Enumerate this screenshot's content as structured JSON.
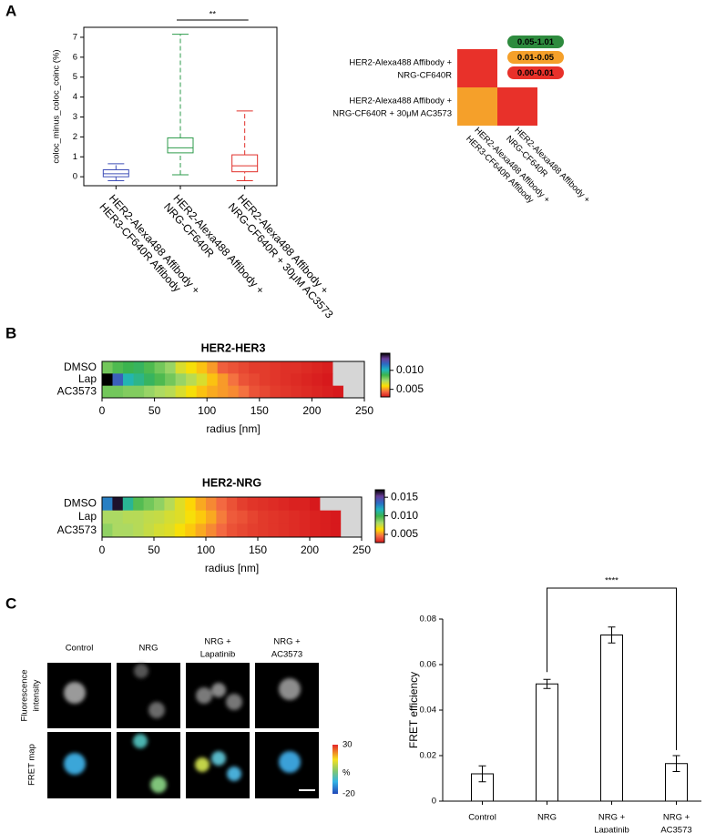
{
  "panel_labels": [
    "A",
    "B",
    "C"
  ],
  "chart_data": [
    {
      "type": "box",
      "ylabel": "coloc_minus_coloc_coinc (%)",
      "categories": [
        [
          "HER2-Alexa488 Affibody +",
          "HER3-CF640R Affibody"
        ],
        [
          "HER2-Alexa488 Affibody +",
          "NRG-CF640R"
        ],
        [
          "HER2-Alexa488 Affibody +",
          "NRG-CF640R + 30μM AC3573"
        ]
      ],
      "colors": [
        "#3f4fb8",
        "#2e9b4b",
        "#e0302a"
      ],
      "boxes": [
        {
          "min": -0.2,
          "q1": 0.0,
          "median": 0.15,
          "q3": 0.35,
          "max": 0.65
        },
        {
          "min": 0.1,
          "q1": 1.2,
          "median": 1.45,
          "q3": 1.95,
          "max": 7.15
        },
        {
          "min": -0.2,
          "q1": 0.25,
          "median": 0.55,
          "q3": 1.1,
          "max": 3.3
        }
      ],
      "ylim": [
        -0.45,
        7.5
      ],
      "yticks": [
        0,
        1,
        2,
        3,
        4,
        5,
        6,
        7
      ],
      "annotations": [
        "**"
      ]
    },
    {
      "type": "pmatrix",
      "rows": [
        [
          "HER2-Alexa488 Affibody +",
          "NRG-CF640R"
        ],
        [
          "HER2-Alexa488 Affibody +",
          "NRG-CF640R + 30μM AC3573"
        ]
      ],
      "columns": [
        [
          "HER2-Alexa488 Affibody +",
          "HER3-CF640R Affibody"
        ],
        [
          "HER2-Alexa488 Affibody +",
          "NRG-CF640R"
        ]
      ],
      "cells": [
        [
          "#e8312a",
          null
        ],
        [
          "#f5a02a",
          "#e8312a"
        ]
      ],
      "legend": [
        {
          "label": "0.05-1.01",
          "color": "#2e8b3e"
        },
        {
          "label": "0.01-0.05",
          "color": "#f5a02a"
        },
        {
          "label": "0.00-0.01",
          "color": "#e8312a"
        }
      ]
    },
    {
      "type": "heatmap",
      "title": "HER2-HER3",
      "y_categories": [
        "DMSO",
        "Lap",
        "AC3573"
      ],
      "values": [
        [
          0.008,
          0.0085,
          0.0088,
          0.009,
          0.0085,
          0.008,
          0.0075,
          0.0065,
          0.006,
          0.0055,
          0.005,
          0.0042,
          0.004,
          0.0038,
          0.0036,
          0.0036,
          0.0035,
          0.0034,
          0.0034,
          0.0033,
          0.0032,
          0.0031,
          0.0029,
          0.0028,
          0.0027
        ],
        [
          0.0145,
          0.012,
          0.01,
          0.0095,
          0.009,
          0.0085,
          0.008,
          0.0075,
          0.007,
          0.0065,
          0.0055,
          0.005,
          0.0045,
          0.004,
          0.0038,
          0.0036,
          0.0035,
          0.0034,
          0.0033,
          0.0032,
          0.0031,
          0.003,
          0.0029,
          0.0028,
          0.0027
        ],
        [
          0.008,
          0.008,
          0.0078,
          0.0078,
          0.0075,
          0.0072,
          0.007,
          0.0065,
          0.006,
          0.0055,
          0.0052,
          0.005,
          0.0048,
          0.0045,
          0.004,
          0.0038,
          0.0036,
          0.0035,
          0.0034,
          0.0033,
          0.0032,
          0.0031,
          0.003,
          0.0029,
          0.0028
        ]
      ],
      "xlim": [
        0,
        250
      ],
      "xticks": [
        0,
        50,
        100,
        150,
        200,
        250
      ],
      "xlabel": "radius [nm]",
      "clim": [
        0.003,
        0.0145
      ],
      "cticks": [
        0.005,
        {
          "value": 0.01,
          "label": "0.010"
        }
      ],
      "colormap": [
        "#d7191c",
        "#f46d43",
        "#fee000",
        "#a6d96a",
        "#3cb44b",
        "#1fb5c0",
        "#2b6cc4",
        "#6a3d9a",
        "#000000"
      ],
      "under_color": "#d6d6d6"
    },
    {
      "type": "heatmap",
      "title": "HER2-NRG",
      "y_categories": [
        "DMSO",
        "Lap",
        "AC3573"
      ],
      "values": [
        [
          0.013,
          0.0165,
          0.011,
          0.0095,
          0.009,
          0.0085,
          0.0078,
          0.007,
          0.0062,
          0.0055,
          0.005,
          0.0045,
          0.004,
          0.0036,
          0.0034,
          0.0033,
          0.0032,
          0.0031,
          0.003,
          0.003,
          0.0028,
          0.0027,
          0.0026,
          0.0025,
          0.0024
        ],
        [
          0.008,
          0.008,
          0.0078,
          0.0078,
          0.0076,
          0.0075,
          0.0072,
          0.007,
          0.0065,
          0.006,
          0.0055,
          0.0048,
          0.0042,
          0.004,
          0.0037,
          0.0035,
          0.0034,
          0.0033,
          0.0032,
          0.0031,
          0.003,
          0.0029,
          0.0028,
          0.0027,
          0.0026
        ],
        [
          0.0085,
          0.008,
          0.008,
          0.0078,
          0.0075,
          0.0072,
          0.007,
          0.0065,
          0.006,
          0.0055,
          0.005,
          0.0045,
          0.004,
          0.0038,
          0.0036,
          0.0035,
          0.0034,
          0.0033,
          0.0032,
          0.0031,
          0.003,
          0.0029,
          0.0028,
          0.0027,
          0.0026
        ]
      ],
      "xlim": [
        0,
        250
      ],
      "xticks": [
        0,
        50,
        100,
        150,
        200,
        250
      ],
      "xlabel": "radius [nm]",
      "clim": [
        0.0028,
        0.017
      ],
      "cticks": [
        0.005,
        {
          "value": 0.01,
          "label": "0.010"
        },
        0.015
      ],
      "colormap": [
        "#d7191c",
        "#f46d43",
        "#fee000",
        "#a6d96a",
        "#3cb44b",
        "#1fb5c0",
        "#2b6cc4",
        "#6a3d9a",
        "#000000"
      ],
      "under_color": "#d6d6d6"
    },
    {
      "type": "bar",
      "ylabel": "FRET  efficiency",
      "categories": [
        [
          "Control"
        ],
        [
          "NRG"
        ],
        [
          "NRG +",
          "Lapatinib"
        ],
        [
          "NRG +",
          "AC3573"
        ]
      ],
      "values": [
        0.012,
        0.0515,
        0.073,
        0.0165
      ],
      "errors": [
        0.0035,
        0.002,
        0.0035,
        0.0035
      ],
      "color": "#ffffff",
      "ylim": [
        0,
        0.08
      ],
      "yticks": [
        0,
        0.02,
        0.04,
        0.06,
        0.08
      ],
      "annotations": [
        "****"
      ]
    }
  ],
  "microscopy": {
    "columns": [
      [
        "Control"
      ],
      [
        "NRG"
      ],
      [
        "NRG +",
        "Lapatinib"
      ],
      [
        "NRG +",
        "AC3573"
      ]
    ],
    "rows": [
      [
        "Fluorescence",
        "intensity"
      ],
      [
        "FRET map"
      ]
    ],
    "colorbar": {
      "ticks": [
        30,
        -20
      ],
      "unit": "%"
    }
  }
}
